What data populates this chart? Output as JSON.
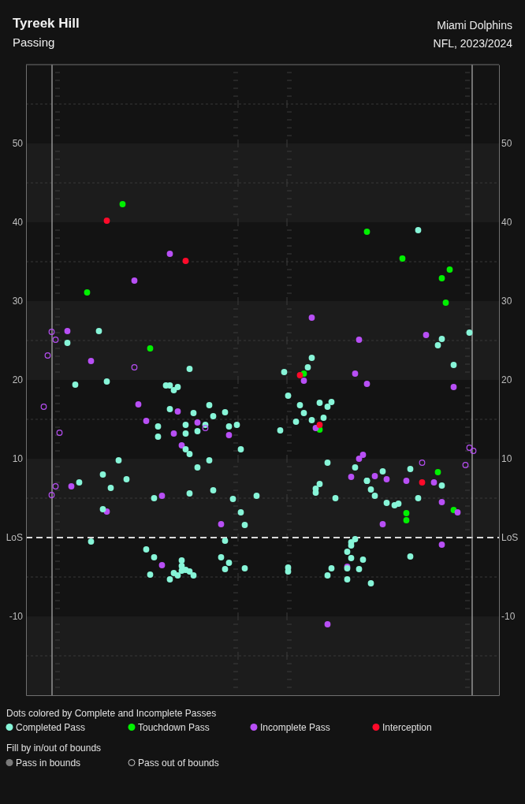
{
  "chart_data": {
    "type": "scatter",
    "title": "Tyreek Hill",
    "subtitle": "Passing",
    "legend_title": "Dots colored by Complete and Incomplete Passes",
    "annotations": [
      "Miami Dolphins",
      "NFL, 2023/2024",
      "Fill by in/out of bounds",
      "Pass in bounds",
      "Pass out of bounds"
    ],
    "categories": [
      null,
      null,
      null,
      null,
      null,
      null,
      null,
      null,
      null,
      null,
      null,
      null,
      null,
      null,
      null,
      null,
      null,
      null,
      null,
      null,
      null,
      null,
      null,
      null,
      null,
      null,
      null,
      null,
      null,
      null,
      null,
      null,
      null,
      null,
      null,
      null,
      null,
      null,
      null,
      null,
      null,
      null,
      null,
      null,
      null,
      null,
      null,
      null,
      null,
      null,
      null,
      null,
      null,
      null,
      null,
      null,
      null,
      null,
      null,
      null,
      null,
      null,
      null,
      null,
      null,
      null,
      null,
      null,
      null,
      null,
      null,
      null,
      null,
      null,
      null,
      null,
      null,
      null,
      null,
      null,
      null,
      null,
      null,
      null,
      null,
      null,
      null,
      null,
      null,
      null,
      null,
      null,
      null,
      null,
      null,
      null,
      null,
      null,
      null,
      null,
      null,
      null,
      null,
      null,
      null,
      null,
      null,
      null,
      null,
      null,
      null,
      null,
      null,
      null,
      null,
      null,
      null,
      null,
      null,
      null
    ],
    "ylim": [
      -20,
      60
    ],
    "yticks": [
      -10,
      {
        "value": 0,
        "label": "LoS"
      },
      10,
      20,
      30,
      40,
      50
    ],
    "y2lim": [
      -20,
      60
    ],
    "y2ticks": [
      -10,
      {
        "value": 0,
        "label": "LoS"
      },
      10,
      20,
      30,
      40,
      50
    ],
    "tick_labels": "y",
    "marker": "circle",
    "legend": "bottom",
    "bands": [
      {
        "axis": "y",
        "from": 40,
        "to": 50,
        "color": "#1c1c1c"
      },
      {
        "axis": "y",
        "from": 20,
        "to": 30,
        "color": "#1c1c1c"
      },
      {
        "axis": "y",
        "from": 0,
        "to": 10,
        "color": "#1c1c1c"
      },
      {
        "axis": "y",
        "from": -20,
        "to": -10,
        "color": "#1c1c1c"
      }
    ],
    "ref_lines": [
      {
        "axis": "y",
        "value": 55,
        "color": "#383838",
        "line_style": "dotted"
      },
      {
        "axis": "y",
        "value": 45,
        "color": "#383838",
        "line_style": "dotted"
      },
      {
        "axis": "y",
        "value": 35,
        "color": "#383838",
        "line_style": "dotted"
      },
      {
        "axis": "y",
        "value": 25,
        "color": "#383838",
        "line_style": "dotted"
      },
      {
        "axis": "y",
        "value": 15,
        "color": "#383838",
        "line_style": "dotted"
      },
      {
        "axis": "y",
        "value": 5,
        "color": "#383838",
        "line_style": "dotted"
      },
      {
        "axis": "y",
        "value": -5,
        "color": "#383838",
        "line_style": "dotted"
      },
      {
        "axis": "y",
        "value": -15,
        "color": "#383838",
        "line_style": "dotted"
      },
      {
        "axis": "y",
        "value": 0,
        "color": "#d9d9d9",
        "line_style": "dashed"
      }
    ],
    "series": [
      {
        "name": "Completed Pass",
        "color": "#87f5d8",
        "values": [
          null,
          null,
          null,
          null,
          null,
          null,
          null,
          null,
          null,
          null,
          24.7,
          null,
          19.4,
          7.0,
          null,
          null,
          -0.5,
          null,
          26.2,
          8.0,
          19.8,
          6.3,
          null,
          9.8,
          null,
          7.4,
          null,
          null,
          null,
          null,
          -1.5,
          -4.7,
          5.0,
          14.1,
          null,
          19.3,
          19.3,
          18.7,
          19.1,
          -2.9,
          -4.1,
          21.4,
          15.8,
          13.5,
          null,
          14.3,
          16.8,
          15.4,
          null,
          -2.5,
          15.9,
          14.1,
          4.9,
          14.3,
          3.2,
          1.6,
          null,
          null,
          5.3,
          null,
          null,
          null,
          null,
          null,
          13.6,
          21.0,
          18.0,
          null,
          14.7,
          16.8,
          15.8,
          21.6,
          22.8,
          6.2,
          17.1,
          15.2,
          16.6,
          17.2,
          5.0,
          null,
          null,
          -1.8,
          -0.6,
          8.9,
          -4.0,
          -2.8,
          7.2,
          6.1,
          5.3,
          null,
          8.4,
          4.4,
          null,
          4.1,
          4.3,
          null,
          null,
          8.7,
          null,
          39.0,
          null,
          null,
          null,
          null,
          24.4,
          25.2,
          null,
          null,
          21.9,
          null,
          null,
          null,
          26.0,
          null,
          null,
          null,
          null,
          null,
          null,
          null
        ]
      },
      {
        "name": "Touchdown Pass",
        "color": "#00f000",
        "values": [
          null,
          null,
          null,
          null,
          null,
          null,
          null,
          null,
          null,
          null,
          null,
          null,
          null,
          null,
          null,
          31.1,
          null,
          null,
          null,
          null,
          null,
          null,
          null,
          null,
          42.3,
          null,
          null,
          null,
          null,
          null,
          null,
          24.0,
          null,
          null,
          null,
          null,
          null,
          null,
          null,
          null,
          null,
          null,
          null,
          null,
          null,
          null,
          null,
          null,
          null,
          null,
          null,
          null,
          null,
          null,
          null,
          null,
          null,
          null,
          null,
          null,
          null,
          null,
          null,
          null,
          null,
          null,
          null,
          null,
          null,
          null,
          20.8,
          null,
          null,
          null,
          13.7,
          null,
          null,
          null,
          null,
          null,
          null,
          null,
          null,
          null,
          null,
          null,
          38.8,
          null,
          null,
          null,
          null,
          null,
          null,
          null,
          null,
          35.4,
          3.1,
          null,
          null,
          null,
          null,
          null,
          null,
          null,
          8.3,
          32.9,
          29.8,
          34.0,
          3.5,
          null,
          null,
          null,
          null,
          null,
          null,
          null,
          null,
          null,
          null,
          null
        ]
      },
      {
        "name": "Incomplete Pass",
        "color": "#b84ff5",
        "values": [
          null,
          null,
          null,
          null,
          null,
          null,
          null,
          null,
          null,
          null,
          26.2,
          6.5,
          null,
          null,
          null,
          null,
          22.4,
          null,
          null,
          null,
          3.3,
          null,
          null,
          null,
          null,
          null,
          null,
          32.6,
          16.9,
          null,
          14.8,
          null,
          null,
          null,
          5.3,
          null,
          36.0,
          13.2,
          16.0,
          11.7,
          null,
          null,
          null,
          14.6,
          null,
          null,
          null,
          null,
          null,
          1.7,
          null,
          13.0,
          null,
          null,
          null,
          null,
          null,
          null,
          null,
          null,
          null,
          null,
          null,
          null,
          null,
          null,
          null,
          null,
          null,
          null,
          19.9,
          null,
          27.9,
          13.9,
          null,
          null,
          -11.0,
          null,
          null,
          null,
          null,
          -3.7,
          7.7,
          20.8,
          25.1,
          10.5,
          19.5,
          null,
          7.8,
          null,
          1.7,
          7.4,
          null,
          null,
          null,
          null,
          7.2,
          null,
          null,
          null,
          null,
          25.7,
          null,
          7.0,
          null,
          4.5,
          null,
          null,
          19.1,
          3.2,
          null,
          null,
          null,
          null,
          null,
          null,
          null,
          null,
          null,
          null
        ]
      },
      {
        "name": "Interception",
        "color": "#ff0a2a",
        "values": [
          null,
          null,
          null,
          null,
          null,
          null,
          null,
          null,
          null,
          null,
          null,
          null,
          null,
          null,
          null,
          null,
          null,
          null,
          null,
          null,
          40.2,
          null,
          null,
          null,
          null,
          null,
          null,
          null,
          null,
          null,
          null,
          null,
          null,
          null,
          null,
          null,
          null,
          null,
          null,
          null,
          35.1,
          null,
          null,
          null,
          null,
          null,
          null,
          null,
          null,
          null,
          null,
          null,
          null,
          null,
          null,
          null,
          null,
          null,
          null,
          null,
          null,
          null,
          null,
          null,
          null,
          null,
          null,
          null,
          null,
          20.6,
          null,
          null,
          null,
          null,
          14.3,
          null,
          null,
          null,
          null,
          null,
          null,
          null,
          null,
          null,
          null,
          null,
          null,
          null,
          null,
          null,
          null,
          null,
          null,
          null,
          null,
          null,
          null,
          null,
          null,
          null,
          7.0,
          null,
          null,
          null,
          null,
          null,
          null,
          null,
          null,
          null,
          null,
          null,
          null,
          null,
          null,
          null,
          null,
          null,
          null,
          null
        ]
      },
      {
        "color": "#87f5d8",
        "values": [
          null,
          null,
          null,
          null,
          null,
          null,
          null,
          null,
          null,
          null,
          null,
          null,
          null,
          null,
          null,
          null,
          null,
          null,
          null,
          3.6,
          null,
          null,
          null,
          null,
          null,
          null,
          null,
          null,
          null,
          null,
          null,
          null,
          -2.5,
          12.8,
          null,
          null,
          16.3,
          -4.5,
          -4.8,
          -4.2,
          14.3,
          10.6,
          -4.8,
          8.9,
          null,
          null,
          9.8,
          6.0,
          null,
          null,
          -0.4,
          -3.2,
          null,
          null,
          11.2,
          -3.9,
          null,
          null,
          null,
          null,
          null,
          null,
          null,
          null,
          null,
          null,
          -3.8,
          null,
          null,
          null,
          null,
          null,
          14.9,
          5.7,
          6.8,
          null,
          9.5,
          -3.9,
          null,
          null,
          null,
          -3.9,
          -2.6,
          -0.2,
          null,
          null,
          7.2,
          -5.8,
          null,
          null,
          null,
          null,
          null,
          null,
          null,
          null,
          null,
          -2.4,
          null,
          5.0,
          null,
          null,
          null,
          null,
          null,
          6.6,
          null,
          null,
          null,
          null,
          null,
          null,
          null,
          null,
          null,
          null,
          null,
          null,
          null,
          null
        ]
      },
      {
        "color": "#87f5d8",
        "values": [
          null,
          null,
          null,
          null,
          null,
          null,
          null,
          null,
          null,
          null,
          null,
          null,
          null,
          null,
          null,
          null,
          null,
          null,
          null,
          null,
          null,
          null,
          null,
          null,
          null,
          null,
          null,
          null,
          null,
          null,
          null,
          null,
          null,
          null,
          null,
          null,
          -5.3,
          null,
          null,
          -3.6,
          13.2,
          -4.3,
          null,
          null,
          null,
          null,
          null,
          null,
          null,
          null,
          -4.0,
          null,
          null,
          null,
          null,
          null,
          null,
          null,
          null,
          null,
          null,
          null,
          null,
          null,
          null,
          null,
          -4.3,
          null,
          null,
          null,
          null,
          null,
          null,
          null,
          null,
          null,
          -4.8,
          null,
          null,
          null,
          null,
          -5.3,
          -1.0,
          null,
          null,
          null,
          null,
          null,
          null,
          null,
          null,
          null,
          null,
          null,
          null,
          null,
          null,
          null,
          null,
          null,
          null,
          null,
          null,
          null,
          null,
          null,
          null,
          null,
          null,
          null,
          null,
          null,
          null,
          null,
          null,
          null,
          null,
          null,
          null,
          null
        ]
      },
      {
        "color": "#87f5d8",
        "values": [
          null,
          null,
          null,
          null,
          null,
          null,
          null,
          null,
          null,
          null,
          null,
          null,
          null,
          null,
          null,
          null,
          null,
          null,
          null,
          null,
          null,
          null,
          null,
          null,
          null,
          null,
          null,
          null,
          null,
          null,
          null,
          null,
          null,
          null,
          null,
          null,
          null,
          null,
          null,
          null,
          11.2,
          5.6,
          null,
          null,
          null,
          null,
          null,
          null,
          null,
          null,
          null,
          null,
          null,
          null,
          null,
          null,
          null,
          null,
          null,
          null,
          null,
          null,
          null,
          null,
          null,
          null,
          null,
          null,
          null,
          null,
          null,
          null,
          null,
          null,
          null,
          null,
          null,
          null,
          null,
          null,
          null,
          null,
          null,
          null,
          null,
          null,
          null,
          null,
          null,
          null,
          null,
          null,
          null,
          null,
          null,
          null,
          null,
          null,
          null,
          null,
          null,
          null,
          null,
          null,
          null,
          null,
          null,
          null,
          null,
          null,
          null,
          null,
          null,
          null,
          null,
          null,
          null,
          null,
          null,
          null
        ]
      },
      {
        "color": "#00f000",
        "values": [
          null,
          null,
          null,
          null,
          null,
          null,
          null,
          null,
          null,
          null,
          null,
          null,
          null,
          null,
          null,
          null,
          null,
          null,
          null,
          null,
          null,
          null,
          null,
          null,
          null,
          null,
          null,
          null,
          null,
          null,
          null,
          null,
          null,
          null,
          null,
          null,
          null,
          null,
          null,
          null,
          null,
          null,
          null,
          null,
          null,
          null,
          null,
          null,
          null,
          null,
          null,
          null,
          null,
          null,
          null,
          null,
          null,
          null,
          null,
          null,
          null,
          null,
          null,
          null,
          null,
          null,
          null,
          null,
          null,
          null,
          null,
          null,
          null,
          null,
          null,
          null,
          null,
          null,
          null,
          null,
          null,
          null,
          null,
          null,
          null,
          null,
          null,
          null,
          null,
          null,
          null,
          null,
          null,
          null,
          null,
          null,
          2.2,
          null,
          null,
          null,
          null,
          null,
          null,
          null,
          null,
          null,
          null,
          null,
          null,
          null,
          null,
          null,
          null,
          null,
          null,
          null,
          null,
          null,
          null,
          null
        ]
      },
      {
        "color": "#b84ff5",
        "values": [
          null,
          null,
          null,
          null,
          null,
          null,
          null,
          null,
          null,
          null,
          null,
          null,
          null,
          null,
          null,
          null,
          null,
          null,
          null,
          null,
          null,
          null,
          null,
          null,
          null,
          null,
          null,
          null,
          null,
          null,
          null,
          null,
          null,
          null,
          -3.5,
          null,
          null,
          null,
          null,
          null,
          null,
          null,
          null,
          null,
          null,
          null,
          null,
          null,
          null,
          null,
          null,
          null,
          null,
          null,
          null,
          null,
          null,
          null,
          null,
          null,
          null,
          null,
          null,
          null,
          null,
          null,
          null,
          null,
          null,
          null,
          null,
          null,
          null,
          null,
          null,
          null,
          null,
          null,
          null,
          null,
          null,
          null,
          null,
          null,
          10.0,
          null,
          null,
          null,
          null,
          null,
          null,
          null,
          null,
          null,
          null,
          null,
          null,
          null,
          null,
          null,
          null,
          null,
          null,
          null,
          null,
          -0.9,
          null,
          null,
          null,
          null,
          null,
          null,
          null,
          null,
          null,
          null,
          null,
          null,
          null,
          null
        ]
      },
      {
        "color": "#b84ff5",
        "colors": [
          null,
          null,
          null,
          null,
          null,
          null,
          null,
          null,
          null,
          null,
          null,
          null,
          null,
          null,
          null,
          null,
          null,
          null,
          null,
          null,
          null,
          null,
          null,
          null,
          null,
          null,
          null,
          null,
          null,
          null,
          null,
          null,
          null,
          null,
          null,
          null,
          null,
          null,
          null,
          null,
          null,
          null,
          null,
          null,
          null,
          null,
          null,
          null,
          null,
          null,
          null,
          null,
          null,
          null,
          null,
          null,
          null,
          null,
          null,
          null,
          null,
          null,
          null,
          null,
          null,
          null,
          null,
          null,
          null,
          null,
          null,
          null,
          null,
          null,
          null,
          null,
          null,
          null,
          null,
          null,
          null,
          null,
          null,
          null,
          null,
          null,
          null,
          null,
          null,
          null,
          null,
          null,
          null,
          null,
          null,
          null,
          null,
          null,
          null,
          null,
          null,
          null,
          null,
          null,
          null,
          null,
          null,
          null,
          null,
          null,
          null,
          null,
          null,
          null,
          null,
          null,
          null,
          null,
          null,
          null
        ],
        "values": [
          null,
          null,
          null,
          null,
          16.6,
          23.1,
          26.1,
          25.1,
          null,
          null,
          null,
          null,
          null,
          null,
          null,
          null,
          null,
          null,
          null,
          null,
          null,
          null,
          null,
          null,
          null,
          null,
          null,
          21.6,
          null,
          null,
          null,
          null,
          null,
          null,
          null,
          null,
          null,
          null,
          null,
          null,
          null,
          null,
          null,
          null,
          null,
          13.9,
          null,
          null,
          null,
          null,
          null,
          null,
          null,
          null,
          null,
          null,
          null,
          null,
          null,
          null,
          null,
          null,
          null,
          null,
          null,
          null,
          null,
          null,
          null,
          null,
          null,
          null,
          null,
          null,
          null,
          null,
          null,
          null,
          null,
          null,
          null,
          null,
          null,
          null,
          null,
          null,
          null,
          null,
          null,
          null,
          null,
          null,
          null,
          null,
          null,
          null,
          null,
          null,
          null,
          null,
          9.5,
          null,
          null,
          null,
          null,
          null,
          null,
          null,
          null,
          null,
          null,
          9.2,
          11.4,
          11.0,
          null,
          null,
          null,
          null,
          null,
          null
        ]
      },
      {
        "color": "#b84ff5",
        "colors": [
          null,
          null,
          null,
          null,
          null,
          null,
          null,
          null,
          null,
          null,
          null,
          null,
          null,
          null,
          null,
          null,
          null,
          null,
          null,
          null,
          null,
          null,
          null,
          null,
          null,
          null,
          null,
          null,
          null,
          null,
          null,
          null,
          null,
          null,
          null,
          null,
          null,
          null,
          null,
          null,
          null,
          null,
          null,
          null,
          null,
          null,
          null,
          null,
          null,
          null,
          null,
          null,
          null,
          null,
          null,
          null,
          null,
          null,
          null,
          null,
          null,
          null,
          null,
          null,
          null,
          null,
          null,
          null,
          null,
          null,
          null,
          null,
          null,
          null,
          null,
          null,
          null,
          null,
          null,
          null,
          null,
          null,
          null,
          null,
          null,
          null,
          null,
          null,
          null,
          null,
          null,
          null,
          null,
          null,
          null,
          null,
          null,
          null,
          null,
          null,
          null,
          null,
          null,
          null,
          null,
          null,
          null,
          null,
          null,
          null,
          null,
          null,
          null,
          null,
          null,
          null,
          null,
          null,
          null,
          null
        ],
        "values": [
          null,
          null,
          null,
          null,
          null,
          null,
          5.4,
          6.5,
          13.3,
          null,
          null,
          null,
          null,
          null,
          null,
          null,
          null,
          null,
          null,
          null,
          null,
          null,
          null,
          null,
          null,
          null,
          null,
          null,
          null,
          null,
          null,
          null,
          null,
          null,
          null,
          null,
          null,
          null,
          null,
          null,
          null,
          null,
          null,
          null,
          null,
          null,
          null,
          null,
          null,
          null,
          null,
          null,
          null,
          null,
          null,
          null,
          null,
          null,
          null,
          null,
          null,
          null,
          null,
          null,
          null,
          null,
          null,
          null,
          null,
          null,
          null,
          null,
          null,
          null,
          null,
          null,
          null,
          null,
          null,
          null,
          null,
          null,
          null,
          null,
          null,
          null,
          null,
          null,
          null,
          null,
          null,
          null,
          null,
          null,
          null,
          null,
          null,
          null,
          null,
          null,
          null,
          null,
          null,
          null,
          null,
          null,
          null,
          null,
          null,
          null,
          null,
          null,
          null,
          null,
          null,
          null,
          null,
          null,
          null,
          null
        ]
      }
    ]
  }
}
